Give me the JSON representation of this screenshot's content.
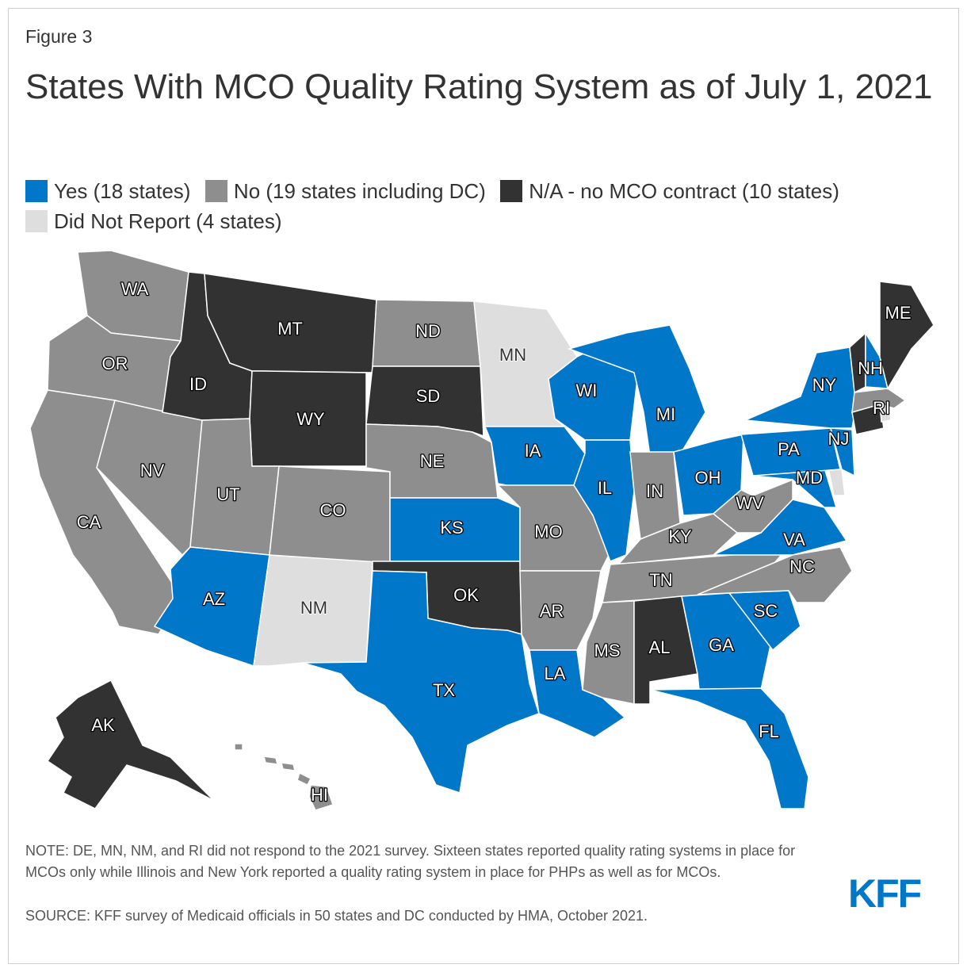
{
  "figure_label": "Figure 3",
  "title": "States With MCO Quality Rating System as of July 1, 2021",
  "legend": [
    {
      "key": "yes",
      "label": "Yes (18 states)",
      "color": "#0077c8"
    },
    {
      "key": "no",
      "label": "No (19 states including DC)",
      "color": "#8e8e8e"
    },
    {
      "key": "na",
      "label": "N/A - no MCO contract (10 states)",
      "color": "#323232"
    },
    {
      "key": "dnr",
      "label": "Did Not Report (4 states)",
      "color": "#dedede"
    }
  ],
  "states": {
    "WA": "no",
    "OR": "no",
    "CA": "no",
    "NV": "no",
    "ID": "na",
    "MT": "na",
    "WY": "na",
    "UT": "no",
    "AZ": "yes",
    "NM": "dnr",
    "CO": "no",
    "ND": "no",
    "SD": "na",
    "NE": "no",
    "KS": "yes",
    "OK": "na",
    "TX": "yes",
    "MN": "dnr",
    "IA": "yes",
    "MO": "no",
    "AR": "no",
    "LA": "yes",
    "WI": "yes",
    "IL": "yes",
    "MI": "yes",
    "IN": "no",
    "OH": "yes",
    "KY": "no",
    "TN": "no",
    "MS": "no",
    "AL": "na",
    "GA": "yes",
    "FL": "yes",
    "SC": "yes",
    "NC": "no",
    "VA": "yes",
    "WV": "no",
    "MD": "yes",
    "DE": "dnr",
    "PA": "yes",
    "NJ": "yes",
    "NY": "yes",
    "CT": "na",
    "RI": "dnr",
    "MA": "no",
    "VT": "na",
    "NH": "yes",
    "ME": "na",
    "AK": "na",
    "HI": "no",
    "DC": "no"
  },
  "labels": {
    "WA": "WA",
    "OR": "OR",
    "CA": "CA",
    "NV": "NV",
    "ID": "ID",
    "MT": "MT",
    "WY": "WY",
    "UT": "UT",
    "AZ": "AZ",
    "NM": "NM",
    "CO": "CO",
    "ND": "ND",
    "SD": "SD",
    "NE": "NE",
    "KS": "KS",
    "OK": "OK",
    "TX": "TX",
    "MN": "MN",
    "IA": "IA",
    "MO": "MO",
    "AR": "AR",
    "LA": "LA",
    "WI": "WI",
    "IL": "IL",
    "MI": "MI",
    "IN": "IN",
    "OH": "OH",
    "KY": "KY",
    "TN": "TN",
    "MS": "MS",
    "AL": "AL",
    "GA": "GA",
    "FL": "FL",
    "SC": "SC",
    "NC": "NC",
    "VA": "VA",
    "WV": "WV",
    "MD": "MD",
    "PA": "PA",
    "NJ": "NJ",
    "NY": "NY",
    "RI": "RI",
    "NH": "NH",
    "ME": "ME",
    "AK": "AK",
    "HI": "HI"
  },
  "note": "NOTE: DE, MN, NM, and RI did not respond to the 2021 survey. Sixteen states reported quality rating systems in place for MCOs only while Illinois and New York reported a quality rating system in place for PHPs as well as for MCOs.",
  "source": "SOURCE: KFF survey of Medicaid officials in 50 states and DC conducted by HMA, October 2021.",
  "logo": "KFF",
  "logo_color": "#0077c8"
}
